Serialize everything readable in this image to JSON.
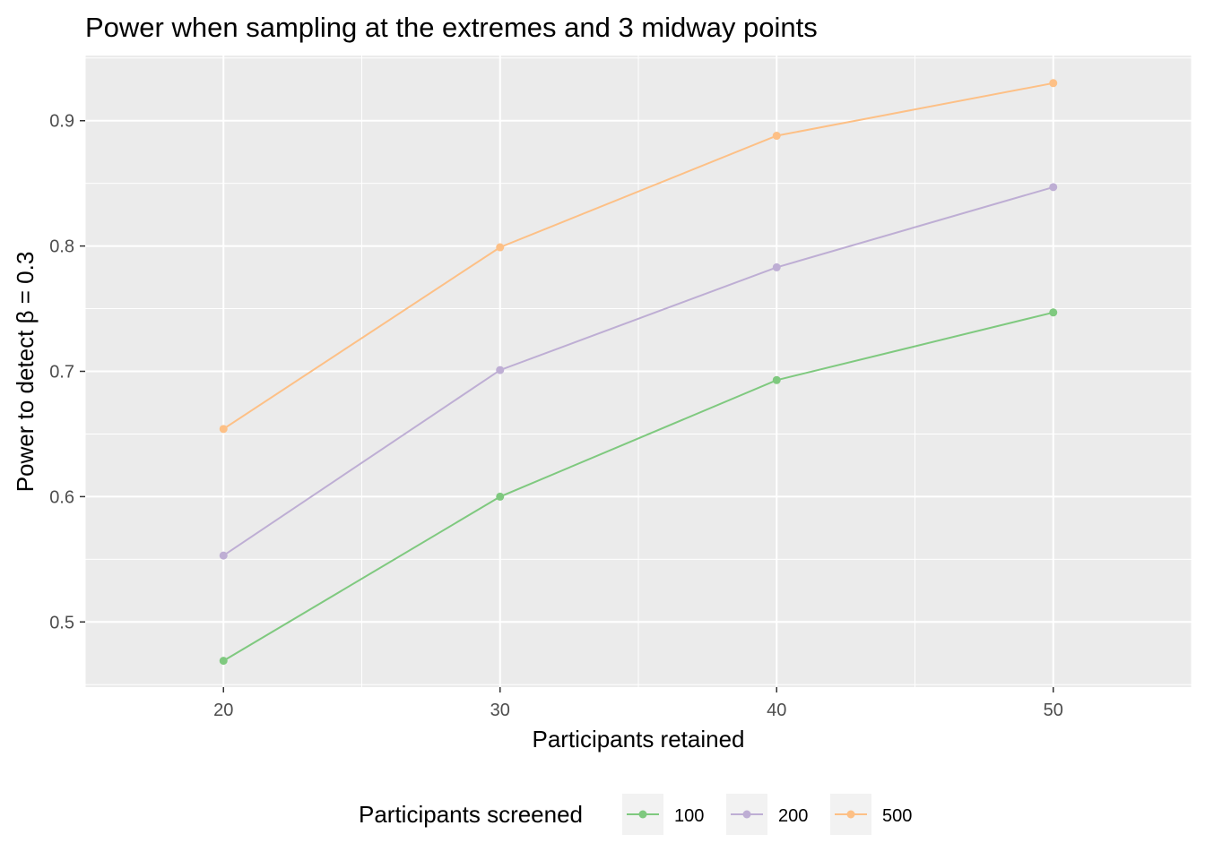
{
  "chart_data": {
    "type": "line",
    "title": "Power when sampling at the extremes and 3 midway points",
    "xlabel": "Participants retained",
    "ylabel": "Power to detect β = 0.3",
    "x": [
      20,
      30,
      40,
      50
    ],
    "xlim": [
      15,
      55
    ],
    "ylim": [
      0.448,
      0.952
    ],
    "xticks": [
      20,
      30,
      40,
      50
    ],
    "yticks": [
      0.5,
      0.6,
      0.7,
      0.8,
      0.9
    ],
    "ytick_labels": [
      "0.5",
      "0.6",
      "0.7",
      "0.8",
      "0.9"
    ],
    "grid": true,
    "panel_background": "#EBEBEB",
    "legend": {
      "title": "Participants screened",
      "position": "bottom"
    },
    "series": [
      {
        "name": "100",
        "color": "#7FC97F",
        "values": [
          0.469,
          0.6,
          0.693,
          0.747
        ]
      },
      {
        "name": "200",
        "color": "#BEAED4",
        "values": [
          0.553,
          0.701,
          0.783,
          0.847
        ]
      },
      {
        "name": "500",
        "color": "#FDC086",
        "values": [
          0.654,
          0.799,
          0.888,
          0.93
        ]
      }
    ]
  }
}
